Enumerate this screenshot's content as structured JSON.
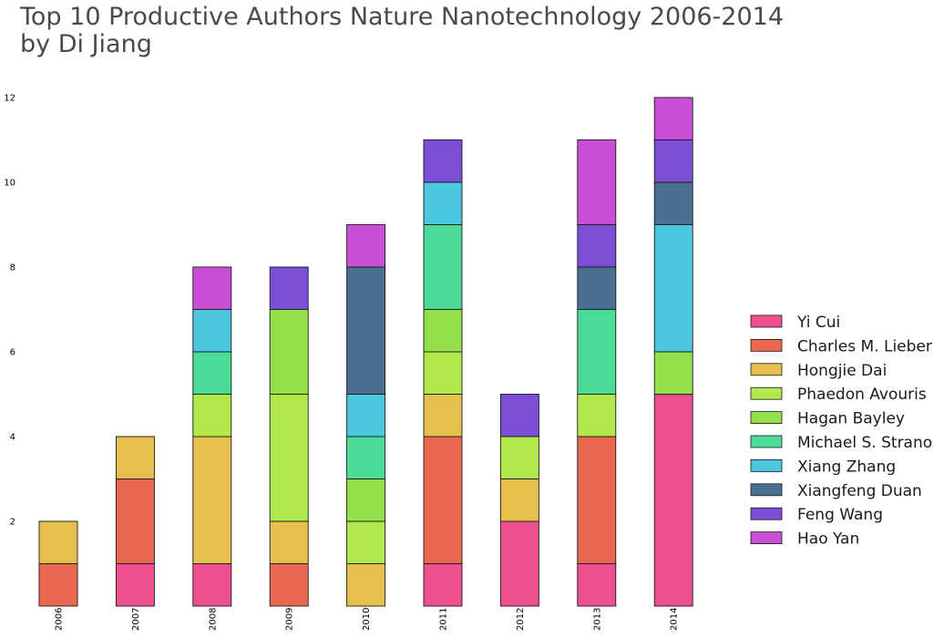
{
  "title_line1": "Top 10 Productive Authors Nature Nanotechnology 2006-2014",
  "title_line2": "by Di Jiang",
  "chart_data": {
    "type": "bar",
    "stacked": true,
    "title": "Top 10 Productive Authors Nature Nanotechnology 2006-2014\nby Di Jiang",
    "xlabel": "",
    "ylabel": "",
    "categories": [
      "2006",
      "2007",
      "2008",
      "2009",
      "2010",
      "2011",
      "2012",
      "2013",
      "2014"
    ],
    "ylim": [
      0,
      12
    ],
    "yticks": [
      2,
      4,
      6,
      8,
      10,
      12
    ],
    "legend_position": "center-right",
    "grid": false,
    "series": [
      {
        "name": "Yi Cui",
        "color": "#ee4f8f",
        "values": [
          0,
          1,
          1,
          0,
          0,
          1,
          2,
          1,
          5
        ]
      },
      {
        "name": "Charles M. Lieber",
        "color": "#eb6850",
        "values": [
          1,
          2,
          0,
          1,
          0,
          3,
          0,
          3,
          0
        ]
      },
      {
        "name": "Hongjie Dai",
        "color": "#e5c04f",
        "values": [
          1,
          1,
          3,
          1,
          1,
          1,
          1,
          0,
          0
        ]
      },
      {
        "name": "Phaedon Avouris",
        "color": "#b1e84b",
        "values": [
          0,
          0,
          1,
          3,
          1,
          1,
          1,
          1,
          0
        ]
      },
      {
        "name": "Hagan Bayley",
        "color": "#92e04a",
        "values": [
          0,
          0,
          0,
          2,
          1,
          1,
          0,
          0,
          1
        ]
      },
      {
        "name": "Michael S. Strano",
        "color": "#4adc97",
        "values": [
          0,
          0,
          1,
          0,
          1,
          2,
          0,
          2,
          0
        ]
      },
      {
        "name": "Xiang Zhang",
        "color": "#4cc7de",
        "values": [
          0,
          0,
          1,
          0,
          1,
          1,
          0,
          0,
          3
        ]
      },
      {
        "name": "Xiangfeng Duan",
        "color": "#4a7091",
        "values": [
          0,
          0,
          0,
          0,
          3,
          0,
          0,
          1,
          1
        ]
      },
      {
        "name": "Feng Wang",
        "color": "#7a4fd6",
        "values": [
          0,
          0,
          0,
          1,
          0,
          1,
          1,
          1,
          1
        ]
      },
      {
        "name": "Hao Yan",
        "color": "#c84fd6",
        "values": [
          0,
          0,
          1,
          0,
          1,
          0,
          0,
          2,
          1
        ]
      }
    ]
  }
}
